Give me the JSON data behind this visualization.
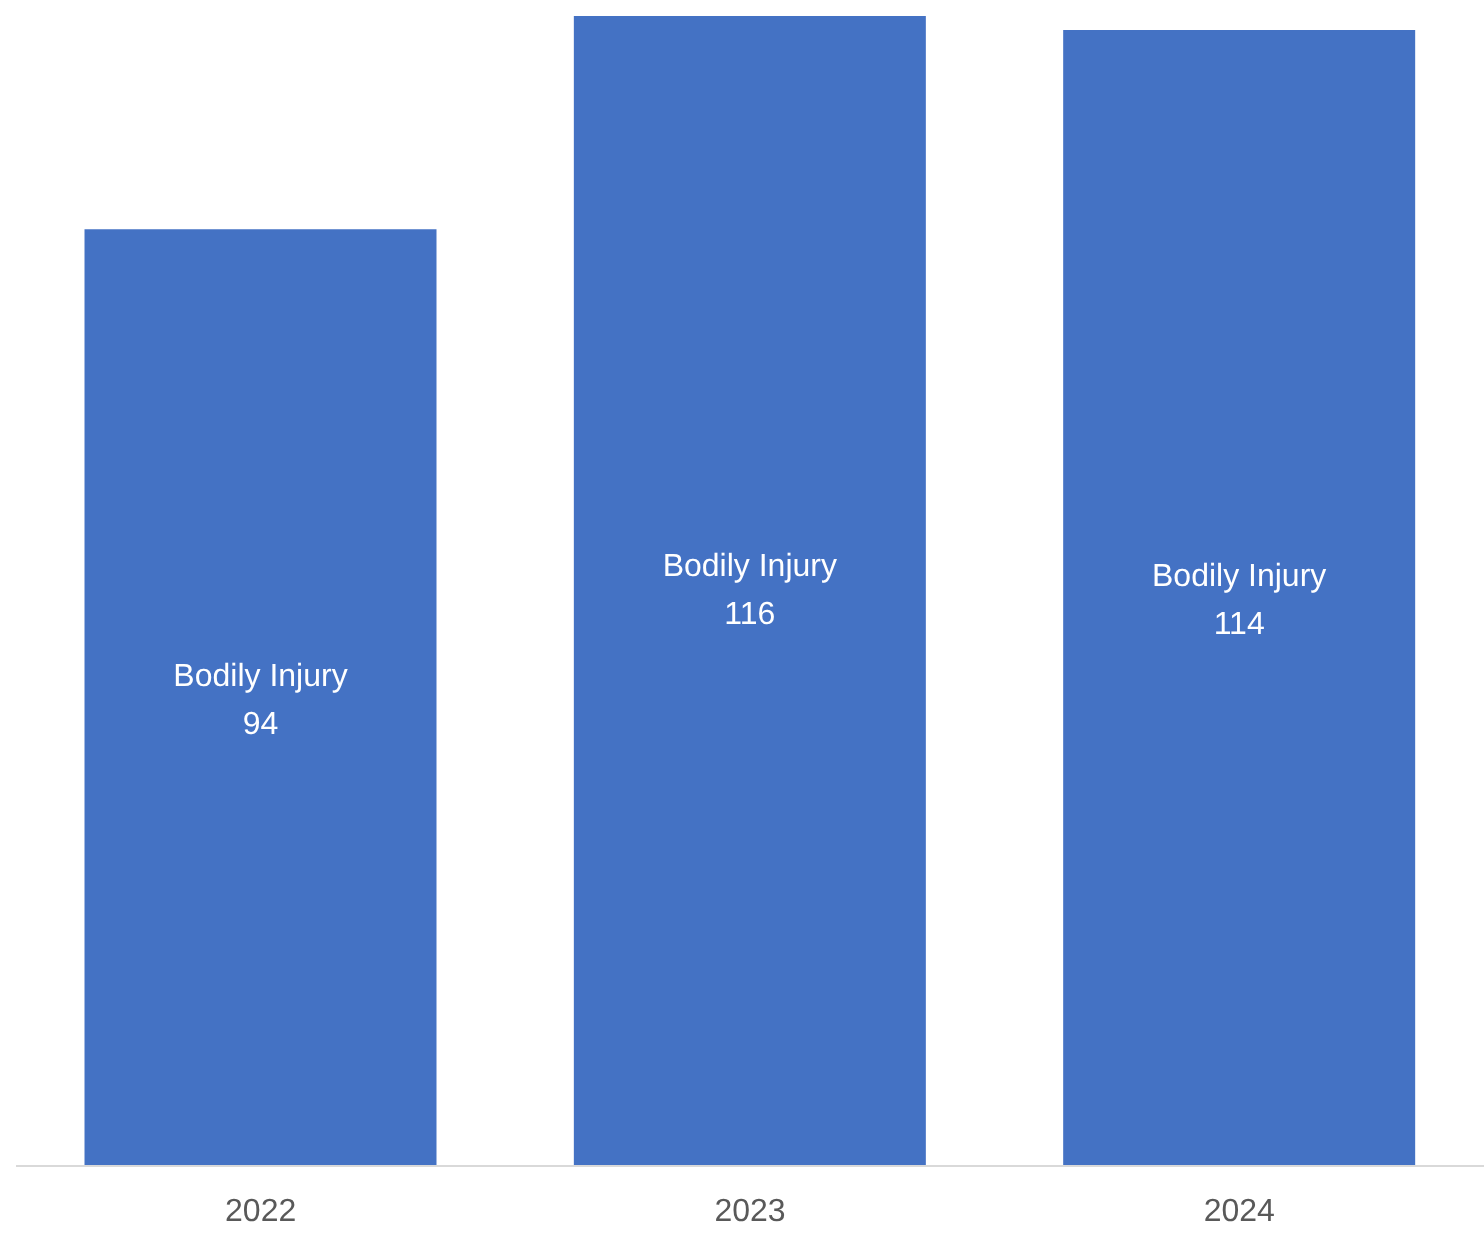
{
  "chart_data": {
    "type": "bar",
    "categories": [
      "2022",
      "2023",
      "2024"
    ],
    "series": [
      {
        "name": "Bodily Injury",
        "color": "#4472c4",
        "values": [
          94,
          116,
          114
        ]
      }
    ],
    "data_labels": true,
    "grid": false,
    "legend": false
  }
}
